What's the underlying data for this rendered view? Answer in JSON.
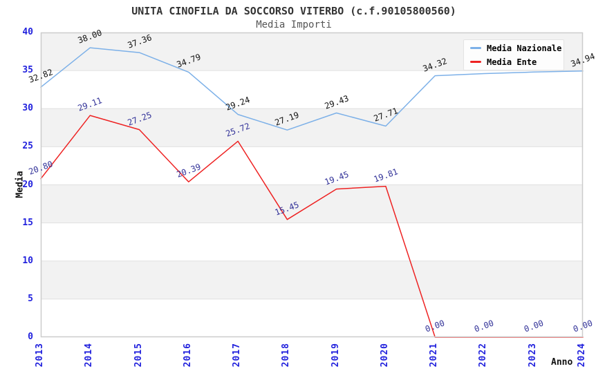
{
  "chart_data": {
    "type": "line",
    "title": "UNITA CINOFILA DA SOCCORSO VITERBO (c.f.90105800560)",
    "subtitle": "Media Importi",
    "xlabel": "Anno",
    "ylabel": "Media",
    "x": [
      2013,
      2014,
      2015,
      2016,
      2017,
      2018,
      2019,
      2020,
      2021,
      2022,
      2023,
      2024
    ],
    "ylim": [
      0,
      40
    ],
    "yticks": [
      0,
      5,
      10,
      15,
      20,
      25,
      30,
      35,
      40
    ],
    "grid": true,
    "alternating_bands": true,
    "legend_position": "top-right",
    "series": [
      {
        "name": "Media Nazionale",
        "color": "#7cb0e8",
        "label_color": "#111111",
        "values": [
          32.82,
          38.0,
          37.36,
          34.79,
          29.24,
          27.19,
          29.43,
          27.71,
          34.32,
          34.6,
          34.8,
          34.94
        ],
        "point_labels": [
          "32.82",
          "38.00",
          "37.36",
          "34.79",
          "29.24",
          "27.19",
          "29.43",
          "27.71",
          "34.32",
          "",
          "",
          "34.94"
        ]
      },
      {
        "name": "Media Ente",
        "color": "#ee2222",
        "label_color": "#333399",
        "values": [
          20.8,
          29.11,
          27.25,
          20.39,
          25.72,
          15.45,
          19.45,
          19.81,
          0.0,
          0.0,
          0.0,
          0.0
        ],
        "point_labels": [
          "20.80",
          "29.11",
          "27.25",
          "20.39",
          "25.72",
          "15.45",
          "19.45",
          "19.81",
          "0.00",
          "0.00",
          "0.00",
          "0.00"
        ]
      }
    ],
    "colors": {
      "axis_ticks": "#2222dd",
      "band": "#f2f2f2",
      "gridline": "#e0e0e0",
      "frame": "#cccccc",
      "title": "#333333",
      "subtitle": "#555555",
      "axis_title": "#111111"
    }
  }
}
